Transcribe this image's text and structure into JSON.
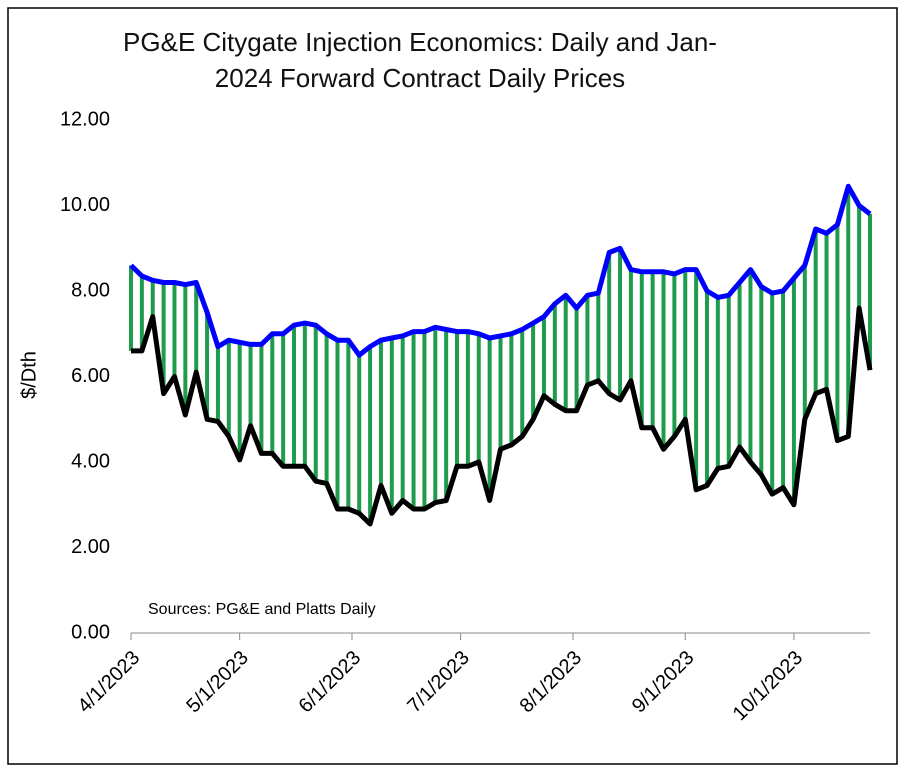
{
  "chart_data": {
    "type": "line",
    "title": "PG&E Citygate Injection Economics: Daily and Jan-2024 Forward Contract Daily Prices",
    "y_label": "$/Dth",
    "annotation": "Sources: PG&E and Platts Daily",
    "x": [
      "2023-04-01",
      "2023-04-04",
      "2023-04-07",
      "2023-04-10",
      "2023-04-13",
      "2023-04-16",
      "2023-04-19",
      "2023-04-22",
      "2023-04-25",
      "2023-04-28",
      "2023-05-01",
      "2023-05-04",
      "2023-05-07",
      "2023-05-10",
      "2023-05-13",
      "2023-05-16",
      "2023-05-19",
      "2023-05-22",
      "2023-05-25",
      "2023-05-28",
      "2023-05-31",
      "2023-06-03",
      "2023-06-06",
      "2023-06-09",
      "2023-06-12",
      "2023-06-15",
      "2023-06-18",
      "2023-06-21",
      "2023-06-24",
      "2023-06-27",
      "2023-06-30",
      "2023-07-03",
      "2023-07-06",
      "2023-07-09",
      "2023-07-12",
      "2023-07-15",
      "2023-07-18",
      "2023-07-21",
      "2023-07-24",
      "2023-07-27",
      "2023-07-30",
      "2023-08-02",
      "2023-08-05",
      "2023-08-08",
      "2023-08-11",
      "2023-08-14",
      "2023-08-17",
      "2023-08-20",
      "2023-08-23",
      "2023-08-26",
      "2023-08-29",
      "2023-09-01",
      "2023-09-04",
      "2023-09-07",
      "2023-09-10",
      "2023-09-13",
      "2023-09-16",
      "2023-09-19",
      "2023-09-22",
      "2023-09-25",
      "2023-09-28",
      "2023-10-01",
      "2023-10-04",
      "2023-10-07",
      "2023-10-10",
      "2023-10-13",
      "2023-10-16",
      "2023-10-19",
      "2023-10-22"
    ],
    "series": [
      {
        "color": "#0000ff",
        "values": [
          8.6,
          8.35,
          8.25,
          8.2,
          8.2,
          8.15,
          8.2,
          7.5,
          6.7,
          6.85,
          6.8,
          6.75,
          6.75,
          7.0,
          7.0,
          7.2,
          7.25,
          7.2,
          7.0,
          6.85,
          6.85,
          6.5,
          6.7,
          6.85,
          6.9,
          6.95,
          7.05,
          7.05,
          7.15,
          7.1,
          7.05,
          7.05,
          7.0,
          6.9,
          6.95,
          7.0,
          7.1,
          7.25,
          7.4,
          7.7,
          7.9,
          7.6,
          7.9,
          7.95,
          8.9,
          9.0,
          8.5,
          8.45,
          8.45,
          8.45,
          8.4,
          8.5,
          8.5,
          8.0,
          7.85,
          7.9,
          8.2,
          8.5,
          8.1,
          7.95,
          8.0,
          8.3,
          8.6,
          9.45,
          9.35,
          9.55,
          10.45,
          10.0,
          9.8
        ]
      },
      {
        "color": "#000000",
        "values": [
          6.6,
          6.6,
          7.4,
          5.6,
          6.0,
          5.1,
          6.1,
          5.0,
          4.95,
          4.6,
          4.05,
          4.85,
          4.2,
          4.2,
          3.9,
          3.9,
          3.9,
          3.55,
          3.5,
          2.9,
          2.9,
          2.8,
          2.55,
          3.45,
          2.8,
          3.1,
          2.9,
          2.9,
          3.05,
          3.1,
          3.9,
          3.9,
          4.0,
          3.1,
          4.3,
          4.4,
          4.6,
          5.0,
          5.55,
          5.35,
          5.2,
          5.2,
          5.8,
          5.9,
          5.6,
          5.45,
          5.9,
          4.8,
          4.8,
          4.3,
          4.6,
          5.0,
          3.35,
          3.45,
          3.85,
          3.9,
          4.35,
          4.0,
          3.7,
          3.25,
          3.4,
          3.0,
          5.0,
          5.6,
          5.7,
          4.5,
          4.6,
          7.6,
          6.15
        ]
      }
    ],
    "fill_between_color": "#1e9c4c",
    "xlim": [
      "2023-04-01",
      "2023-10-22"
    ],
    "xticks": [
      {
        "value": "2023-04-01",
        "label": "4/1/2023"
      },
      {
        "value": "2023-05-01",
        "label": "5/1/2023"
      },
      {
        "value": "2023-06-01",
        "label": "6/1/2023"
      },
      {
        "value": "2023-07-01",
        "label": "7/1/2023"
      },
      {
        "value": "2023-08-01",
        "label": "8/1/2023"
      },
      {
        "value": "2023-09-01",
        "label": "9/1/2023"
      },
      {
        "value": "2023-10-01",
        "label": "10/1/2023"
      }
    ],
    "ylim": [
      0,
      12
    ],
    "yticks": [
      {
        "value": 0,
        "label": "0.00"
      },
      {
        "value": 2,
        "label": "2.00"
      },
      {
        "value": 4,
        "label": "4.00"
      },
      {
        "value": 6,
        "label": "6.00"
      },
      {
        "value": 8,
        "label": "8.00"
      },
      {
        "value": 10,
        "label": "10.00"
      },
      {
        "value": 12,
        "label": "12.00"
      }
    ],
    "grid": false
  }
}
